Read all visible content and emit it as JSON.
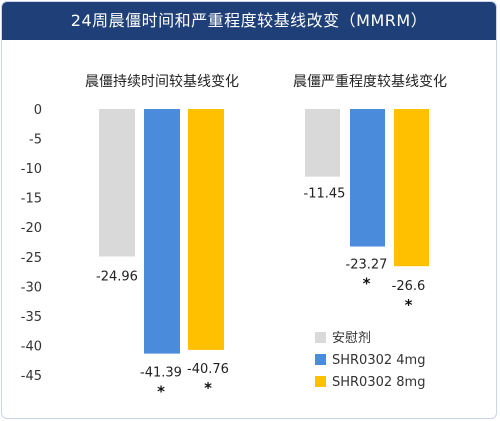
{
  "header": {
    "title": "24周晨僵时间和严重程度较基线改变（MMRM）"
  },
  "colors": {
    "header_bg": "#1e3f77",
    "placebo": "#d9d9d9",
    "shr4": "#4a8bdc",
    "shr8": "#ffc000"
  },
  "chart_data": {
    "type": "bar",
    "ylim": [
      -45,
      0
    ],
    "yticks": [
      0,
      -5,
      -10,
      -15,
      -20,
      -25,
      -30,
      -35,
      -40,
      -45
    ],
    "grid": false,
    "legend": {
      "position": "bottom-right",
      "items": [
        {
          "name": "安慰剂",
          "color": "#d9d9d9"
        },
        {
          "name": "SHR0302 4mg",
          "color": "#4a8bdc"
        },
        {
          "name": "SHR0302 8mg",
          "color": "#ffc000"
        }
      ]
    },
    "panels": [
      {
        "title": "晨僵持续时间较基线变化",
        "series": [
          {
            "name": "安慰剂",
            "value": -24.96,
            "label": "-24.96",
            "significant": false
          },
          {
            "name": "SHR0302 4mg",
            "value": -41.39,
            "label": "-41.39",
            "significant": true
          },
          {
            "name": "SHR0302 8mg",
            "value": -40.76,
            "label": "-40.76",
            "significant": true
          }
        ]
      },
      {
        "title": "晨僵严重程度较基线变化",
        "series": [
          {
            "name": "安慰剂",
            "value": -11.45,
            "label": "-11.45",
            "significant": false
          },
          {
            "name": "SHR0302 4mg",
            "value": -23.27,
            "label": "-23.27",
            "significant": true
          },
          {
            "name": "SHR0302 8mg",
            "value": -26.6,
            "label": "-26.6",
            "significant": true
          }
        ]
      }
    ],
    "significance_marker": "*"
  }
}
